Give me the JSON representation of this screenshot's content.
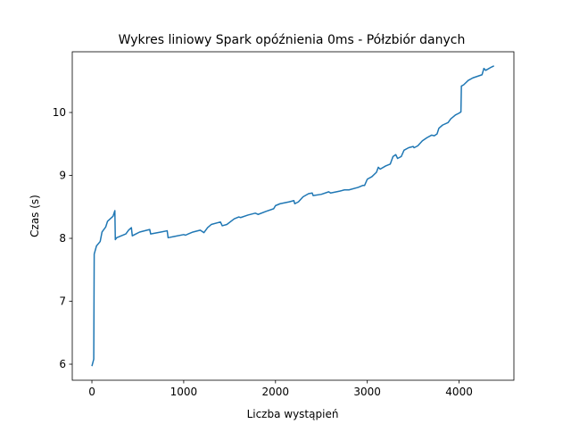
{
  "chart_data": {
    "type": "line",
    "title": "Wykres liniowy Spark opóźnienia 0ms - Półzbiór danych",
    "xlabel": "Liczba wystąpień",
    "ylabel": "Czas (s)",
    "color": "#1f77b4",
    "x": [
      0,
      20,
      25,
      50,
      90,
      110,
      150,
      170,
      230,
      250,
      255,
      270,
      320,
      370,
      400,
      430,
      440,
      480,
      520,
      600,
      630,
      640,
      750,
      820,
      830,
      900,
      1000,
      1020,
      1050,
      1100,
      1180,
      1220,
      1260,
      1300,
      1400,
      1420,
      1470,
      1550,
      1600,
      1620,
      1700,
      1780,
      1810,
      1900,
      1980,
      2000,
      2050,
      2150,
      2200,
      2210,
      2250,
      2300,
      2360,
      2400,
      2410,
      2500,
      2580,
      2600,
      2700,
      2750,
      2800,
      2900,
      2950,
      2970,
      3000,
      3050,
      3100,
      3120,
      3140,
      3200,
      3250,
      3280,
      3310,
      3330,
      3370,
      3400,
      3450,
      3500,
      3510,
      3550,
      3600,
      3650,
      3700,
      3730,
      3760,
      3780,
      3820,
      3880,
      3910,
      3960,
      4000,
      4020,
      4025,
      4050,
      4100,
      4150,
      4250,
      4270,
      4290,
      4350,
      4380
    ],
    "values": [
      5.97,
      6.08,
      7.75,
      7.88,
      7.95,
      8.1,
      8.18,
      8.27,
      8.35,
      8.44,
      7.98,
      8.01,
      8.04,
      8.07,
      8.13,
      8.17,
      8.04,
      8.07,
      8.1,
      8.13,
      8.14,
      8.07,
      8.1,
      8.12,
      8.01,
      8.03,
      8.06,
      8.05,
      8.07,
      8.1,
      8.13,
      8.09,
      8.17,
      8.22,
      8.26,
      8.2,
      8.22,
      8.31,
      8.34,
      8.33,
      8.37,
      8.4,
      8.38,
      8.43,
      8.47,
      8.52,
      8.55,
      8.58,
      8.6,
      8.55,
      8.58,
      8.66,
      8.71,
      8.72,
      8.68,
      8.7,
      8.74,
      8.72,
      8.75,
      8.77,
      8.77,
      8.81,
      8.84,
      8.84,
      8.94,
      8.98,
      9.05,
      9.13,
      9.1,
      9.15,
      9.18,
      9.3,
      9.33,
      9.27,
      9.3,
      9.4,
      9.44,
      9.46,
      9.44,
      9.47,
      9.55,
      9.6,
      9.64,
      9.63,
      9.66,
      9.75,
      9.8,
      9.84,
      9.9,
      9.96,
      9.99,
      10.01,
      10.42,
      10.44,
      10.51,
      10.55,
      10.6,
      10.7,
      10.67,
      10.72,
      10.74
    ],
    "xlim": [
      -214,
      4597
    ],
    "ylim": [
      5.745,
      10.965
    ],
    "xticks": [
      0,
      1000,
      2000,
      3000,
      4000
    ],
    "yticks": [
      6,
      7,
      8,
      9,
      10
    ]
  }
}
